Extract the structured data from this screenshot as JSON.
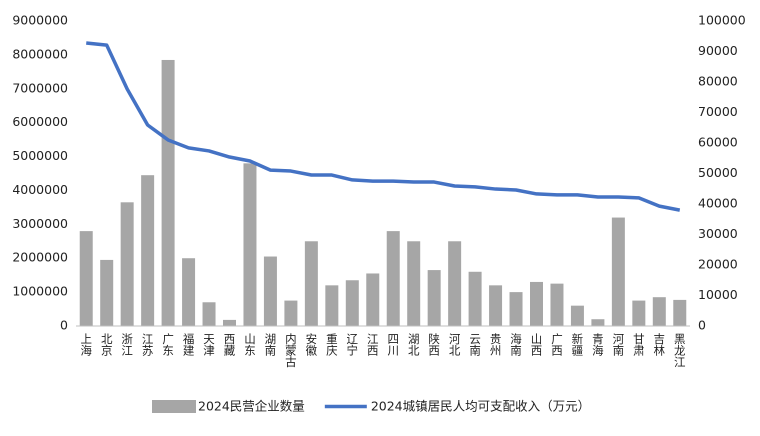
{
  "chart_data": {
    "type": "bar-line",
    "categories": [
      "上海",
      "北京",
      "浙江",
      "江苏",
      "广东",
      "福建",
      "天津",
      "西藏",
      "山东",
      "湖南",
      "内蒙古",
      "安徽",
      "重庆",
      "辽宁",
      "江西",
      "四川",
      "湖北",
      "陕西",
      "河北",
      "云南",
      "贵州",
      "海南",
      "山西",
      "广西",
      "新疆",
      "青海",
      "河南",
      "甘肃",
      "吉林",
      "黑龙江"
    ],
    "series": [
      {
        "name": "2024民营企业数量",
        "type": "bar",
        "color": "#a6a6a6",
        "values": [
          2800000,
          1950000,
          3650000,
          4450000,
          7850000,
          2000000,
          700000,
          180000,
          4800000,
          2050000,
          750000,
          2500000,
          1200000,
          1350000,
          1550000,
          2800000,
          2500000,
          1650000,
          2500000,
          1600000,
          1200000,
          1000000,
          1300000,
          1250000,
          600000,
          200000,
          3200000,
          750000,
          850000,
          770000
        ]
      },
      {
        "name": "2024城镇居民人均可支配收入（万元）",
        "type": "line",
        "color": "#4472c4",
        "axis": "y2",
        "values": [
          92800,
          92100,
          77700,
          65900,
          61000,
          58400,
          57400,
          55400,
          54100,
          51100,
          50800,
          49500,
          49500,
          47900,
          47500,
          47500,
          47200,
          47200,
          45900,
          45600,
          44900,
          44600,
          43300,
          43000,
          43000,
          42300,
          42300,
          42000,
          39300,
          38000
        ]
      }
    ],
    "ylim": [
      0,
      9000000
    ],
    "yticks": [
      0,
      1000000,
      2000000,
      3000000,
      4000000,
      5000000,
      6000000,
      7000000,
      8000000,
      9000000
    ],
    "y2lim": [
      0,
      100000
    ],
    "y2ticks": [
      0,
      10000,
      20000,
      30000,
      40000,
      50000,
      60000,
      70000,
      80000,
      90000,
      100000
    ],
    "legend": "bottom"
  }
}
